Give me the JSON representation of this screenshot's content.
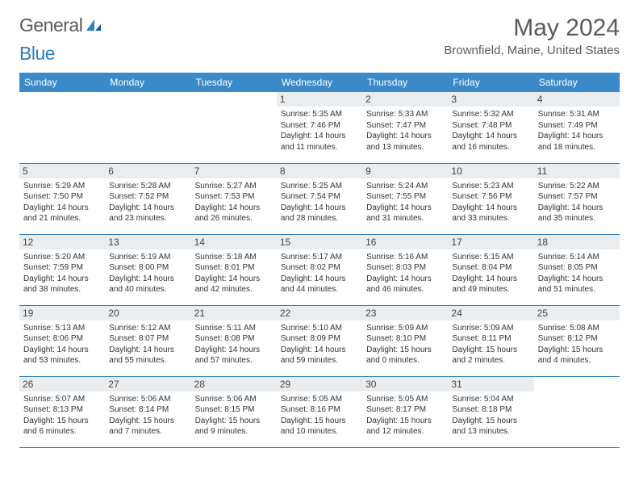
{
  "logo": {
    "word1": "General",
    "word2": "Blue"
  },
  "title": "May 2024",
  "location": "Brownfield, Maine, United States",
  "colors": {
    "header_bg": "#3a8ac9",
    "header_text": "#ffffff",
    "daynum_bg": "#e9edf0",
    "border": "#2f7fbf",
    "text": "#333333",
    "logo_gray": "#5a5a5a",
    "logo_blue": "#2f7fbf"
  },
  "day_headers": [
    "Sunday",
    "Monday",
    "Tuesday",
    "Wednesday",
    "Thursday",
    "Friday",
    "Saturday"
  ],
  "weeks": [
    [
      null,
      null,
      null,
      {
        "n": "1",
        "sr": "5:35 AM",
        "ss": "7:46 PM",
        "dl": "14 hours and 11 minutes."
      },
      {
        "n": "2",
        "sr": "5:33 AM",
        "ss": "7:47 PM",
        "dl": "14 hours and 13 minutes."
      },
      {
        "n": "3",
        "sr": "5:32 AM",
        "ss": "7:48 PM",
        "dl": "14 hours and 16 minutes."
      },
      {
        "n": "4",
        "sr": "5:31 AM",
        "ss": "7:49 PM",
        "dl": "14 hours and 18 minutes."
      }
    ],
    [
      {
        "n": "5",
        "sr": "5:29 AM",
        "ss": "7:50 PM",
        "dl": "14 hours and 21 minutes."
      },
      {
        "n": "6",
        "sr": "5:28 AM",
        "ss": "7:52 PM",
        "dl": "14 hours and 23 minutes."
      },
      {
        "n": "7",
        "sr": "5:27 AM",
        "ss": "7:53 PM",
        "dl": "14 hours and 26 minutes."
      },
      {
        "n": "8",
        "sr": "5:25 AM",
        "ss": "7:54 PM",
        "dl": "14 hours and 28 minutes."
      },
      {
        "n": "9",
        "sr": "5:24 AM",
        "ss": "7:55 PM",
        "dl": "14 hours and 31 minutes."
      },
      {
        "n": "10",
        "sr": "5:23 AM",
        "ss": "7:56 PM",
        "dl": "14 hours and 33 minutes."
      },
      {
        "n": "11",
        "sr": "5:22 AM",
        "ss": "7:57 PM",
        "dl": "14 hours and 35 minutes."
      }
    ],
    [
      {
        "n": "12",
        "sr": "5:20 AM",
        "ss": "7:59 PM",
        "dl": "14 hours and 38 minutes."
      },
      {
        "n": "13",
        "sr": "5:19 AM",
        "ss": "8:00 PM",
        "dl": "14 hours and 40 minutes."
      },
      {
        "n": "14",
        "sr": "5:18 AM",
        "ss": "8:01 PM",
        "dl": "14 hours and 42 minutes."
      },
      {
        "n": "15",
        "sr": "5:17 AM",
        "ss": "8:02 PM",
        "dl": "14 hours and 44 minutes."
      },
      {
        "n": "16",
        "sr": "5:16 AM",
        "ss": "8:03 PM",
        "dl": "14 hours and 46 minutes."
      },
      {
        "n": "17",
        "sr": "5:15 AM",
        "ss": "8:04 PM",
        "dl": "14 hours and 49 minutes."
      },
      {
        "n": "18",
        "sr": "5:14 AM",
        "ss": "8:05 PM",
        "dl": "14 hours and 51 minutes."
      }
    ],
    [
      {
        "n": "19",
        "sr": "5:13 AM",
        "ss": "8:06 PM",
        "dl": "14 hours and 53 minutes."
      },
      {
        "n": "20",
        "sr": "5:12 AM",
        "ss": "8:07 PM",
        "dl": "14 hours and 55 minutes."
      },
      {
        "n": "21",
        "sr": "5:11 AM",
        "ss": "8:08 PM",
        "dl": "14 hours and 57 minutes."
      },
      {
        "n": "22",
        "sr": "5:10 AM",
        "ss": "8:09 PM",
        "dl": "14 hours and 59 minutes."
      },
      {
        "n": "23",
        "sr": "5:09 AM",
        "ss": "8:10 PM",
        "dl": "15 hours and 0 minutes."
      },
      {
        "n": "24",
        "sr": "5:09 AM",
        "ss": "8:11 PM",
        "dl": "15 hours and 2 minutes."
      },
      {
        "n": "25",
        "sr": "5:08 AM",
        "ss": "8:12 PM",
        "dl": "15 hours and 4 minutes."
      }
    ],
    [
      {
        "n": "26",
        "sr": "5:07 AM",
        "ss": "8:13 PM",
        "dl": "15 hours and 6 minutes."
      },
      {
        "n": "27",
        "sr": "5:06 AM",
        "ss": "8:14 PM",
        "dl": "15 hours and 7 minutes."
      },
      {
        "n": "28",
        "sr": "5:06 AM",
        "ss": "8:15 PM",
        "dl": "15 hours and 9 minutes."
      },
      {
        "n": "29",
        "sr": "5:05 AM",
        "ss": "8:16 PM",
        "dl": "15 hours and 10 minutes."
      },
      {
        "n": "30",
        "sr": "5:05 AM",
        "ss": "8:17 PM",
        "dl": "15 hours and 12 minutes."
      },
      {
        "n": "31",
        "sr": "5:04 AM",
        "ss": "8:18 PM",
        "dl": "15 hours and 13 minutes."
      },
      null
    ]
  ],
  "labels": {
    "sunrise": "Sunrise:",
    "sunset": "Sunset:",
    "daylight": "Daylight:"
  }
}
